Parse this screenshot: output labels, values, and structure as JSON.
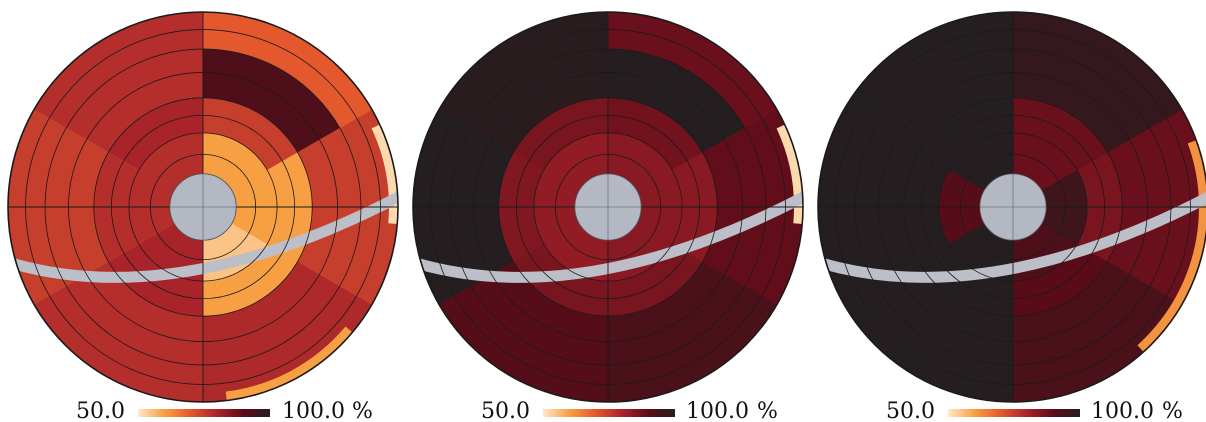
{
  "chart_data": [
    {
      "type": "heatmap",
      "subtype": "polar-sector-map",
      "colorbar": {
        "min_label": "50.0",
        "max_label": "100.0",
        "unit": "%",
        "range": [
          50,
          100
        ]
      },
      "sectors": [
        {
          "r": [
            0.17,
            0.38
          ],
          "theta": [
            -30,
            90
          ],
          "value": 60
        },
        {
          "r": [
            0.17,
            0.38
          ],
          "theta": [
            -90,
            -30
          ],
          "value": 55
        },
        {
          "r": [
            0.17,
            0.38
          ],
          "theta": [
            90,
            210
          ],
          "value": 78
        },
        {
          "r": [
            0.17,
            0.38
          ],
          "theta": [
            210,
            270
          ],
          "value": 80
        },
        {
          "r": [
            0.38,
            0.56
          ],
          "theta": [
            -90,
            -30
          ],
          "value": 60
        },
        {
          "r": [
            0.38,
            0.56
          ],
          "theta": [
            -30,
            30
          ],
          "value": 60
        },
        {
          "r": [
            0.38,
            0.56
          ],
          "theta": [
            30,
            90
          ],
          "value": 75
        },
        {
          "r": [
            0.38,
            0.56
          ],
          "theta": [
            90,
            150
          ],
          "value": 80
        },
        {
          "r": [
            0.38,
            0.56
          ],
          "theta": [
            150,
            210
          ],
          "value": 78
        },
        {
          "r": [
            0.38,
            0.56
          ],
          "theta": [
            210,
            270
          ],
          "value": 80
        },
        {
          "r": [
            0.56,
            1.0
          ],
          "theta": [
            -90,
            -30
          ],
          "value": 79
        },
        {
          "r": [
            0.56,
            1.0
          ],
          "theta": [
            -30,
            30
          ],
          "value": 75
        },
        {
          "r": [
            0.56,
            0.81
          ],
          "theta": [
            30,
            90
          ],
          "value": 92
        },
        {
          "r": [
            0.81,
            1.0
          ],
          "theta": [
            30,
            90
          ],
          "value": 70
        },
        {
          "r": [
            0.56,
            1.0
          ],
          "theta": [
            90,
            150
          ],
          "value": 78
        },
        {
          "r": [
            0.56,
            1.0
          ],
          "theta": [
            150,
            210
          ],
          "value": 75
        },
        {
          "r": [
            0.56,
            1.0
          ],
          "theta": [
            210,
            270
          ],
          "value": 78
        }
      ],
      "edge_bands": [
        {
          "theta": [
            -83,
            -40
          ],
          "value": 60
        },
        {
          "theta": [
            -5,
            25
          ],
          "value": 52
        }
      ]
    },
    {
      "type": "heatmap",
      "subtype": "polar-sector-map",
      "colorbar": {
        "min_label": "50.0",
        "max_label": "100.0",
        "unit": "%",
        "range": [
          50,
          100
        ]
      },
      "sectors": [
        {
          "r": [
            0.17,
            0.38
          ],
          "theta": [
            -90,
            90
          ],
          "value": 84
        },
        {
          "r": [
            0.17,
            0.38
          ],
          "theta": [
            90,
            270
          ],
          "value": 83
        },
        {
          "r": [
            0.38,
            0.56
          ],
          "theta": [
            -90,
            -30
          ],
          "value": 86
        },
        {
          "r": [
            0.38,
            0.56
          ],
          "theta": [
            -30,
            30
          ],
          "value": 84
        },
        {
          "r": [
            0.38,
            0.56
          ],
          "theta": [
            30,
            90
          ],
          "value": 87
        },
        {
          "r": [
            0.38,
            0.56
          ],
          "theta": [
            90,
            150
          ],
          "value": 86
        },
        {
          "r": [
            0.38,
            0.56
          ],
          "theta": [
            150,
            210
          ],
          "value": 85
        },
        {
          "r": [
            0.38,
            0.56
          ],
          "theta": [
            210,
            270
          ],
          "value": 86
        },
        {
          "r": [
            0.56,
            1.0
          ],
          "theta": [
            -90,
            -30
          ],
          "value": 93
        },
        {
          "r": [
            0.56,
            1.0
          ],
          "theta": [
            -30,
            30
          ],
          "value": 89
        },
        {
          "r": [
            0.56,
            0.81
          ],
          "theta": [
            30,
            90
          ],
          "value": 100
        },
        {
          "r": [
            0.81,
            1.0
          ],
          "theta": [
            30,
            90
          ],
          "value": 88
        },
        {
          "r": [
            0.56,
            1.0
          ],
          "theta": [
            90,
            150
          ],
          "value": 99
        },
        {
          "r": [
            0.56,
            1.0
          ],
          "theta": [
            150,
            210
          ],
          "value": 100
        },
        {
          "r": [
            0.56,
            1.0
          ],
          "theta": [
            210,
            270
          ],
          "value": 91
        }
      ],
      "edge_bands": [
        {
          "theta": [
            -5,
            25
          ],
          "value": 52
        }
      ]
    },
    {
      "type": "heatmap",
      "subtype": "polar-sector-map",
      "colorbar": {
        "min_label": "50.0",
        "max_label": "100.0",
        "unit": "%",
        "range": [
          50,
          100
        ]
      },
      "sectors": [
        {
          "r": [
            0.17,
            0.38
          ],
          "theta": [
            -30,
            30
          ],
          "value": 95
        },
        {
          "r": [
            0.17,
            0.38
          ],
          "theta": [
            30,
            90
          ],
          "value": 88
        },
        {
          "r": [
            0.17,
            0.38
          ],
          "theta": [
            90,
            150
          ],
          "value": 100
        },
        {
          "r": [
            0.17,
            0.38
          ],
          "theta": [
            150,
            210
          ],
          "value": 91
        },
        {
          "r": [
            0.17,
            0.38
          ],
          "theta": [
            210,
            270
          ],
          "value": 100
        },
        {
          "r": [
            0.17,
            0.38
          ],
          "theta": [
            -90,
            -30
          ],
          "value": 92
        },
        {
          "r": [
            0.38,
            0.56
          ],
          "theta": [
            -90,
            -30
          ],
          "value": 90
        },
        {
          "r": [
            0.38,
            0.56
          ],
          "theta": [
            -30,
            30
          ],
          "value": 86
        },
        {
          "r": [
            0.38,
            0.56
          ],
          "theta": [
            30,
            90
          ],
          "value": 88
        },
        {
          "r": [
            0.38,
            0.56
          ],
          "theta": [
            90,
            270
          ],
          "value": 100
        },
        {
          "r": [
            0.56,
            1.0
          ],
          "theta": [
            -90,
            -30
          ],
          "value": 93
        },
        {
          "r": [
            0.56,
            1.0
          ],
          "theta": [
            -30,
            30
          ],
          "value": 88
        },
        {
          "r": [
            0.56,
            1.0
          ],
          "theta": [
            30,
            90
          ],
          "value": 97
        },
        {
          "r": [
            0.56,
            1.0
          ],
          "theta": [
            90,
            270
          ],
          "value": 100
        }
      ],
      "edge_bands": [
        {
          "theta": [
            -48,
            20
          ],
          "value": 62
        }
      ]
    }
  ],
  "colorscale": [
    "#fee8c8",
    "#f7a043",
    "#e4582d",
    "#a8242a",
    "#5a0b18",
    "#241e20"
  ],
  "colors": {
    "center_cap": "#b3b8c3",
    "blind_band": "#bcbfc8",
    "grid_line": "#1a1a1a"
  }
}
